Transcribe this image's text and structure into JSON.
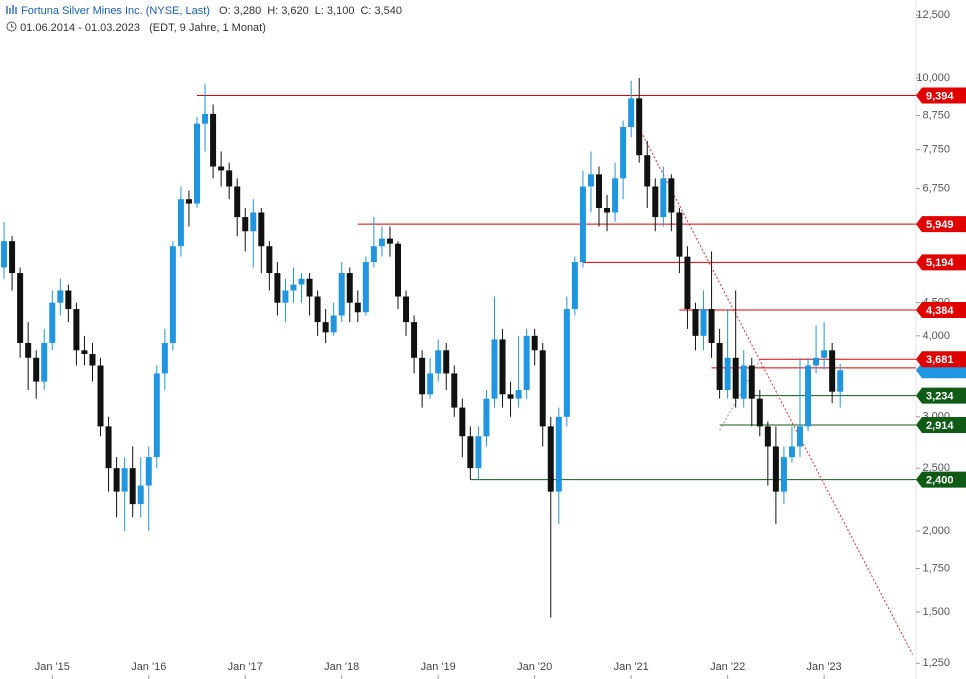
{
  "header": {
    "title": "Fortuna Silver Mines Inc. (NYSE, Last)",
    "ohlc": [
      {
        "name": "O:",
        "text": "3,280"
      },
      {
        "name": "H:",
        "text": "3,620"
      },
      {
        "name": "L:",
        "text": "3,100"
      },
      {
        "name": "C:",
        "text": "3,540"
      }
    ],
    "range": "01.06.2014 - 01.03.2023",
    "info": "(EDT, 9 Jahre, 1 Monat)"
  },
  "chart_data": {
    "type": "candlestick",
    "log_scale": true,
    "up_color": "#2196e0",
    "down_color": "#111111",
    "ylim": [
      1182,
      13190
    ],
    "yticks": [
      {
        "value": 12500,
        "label": "12,500"
      },
      {
        "value": 10000,
        "label": "10,000"
      },
      {
        "value": 8750,
        "label": "8,750"
      },
      {
        "value": 7750,
        "label": "7,750"
      },
      {
        "value": 6750,
        "label": "6,750"
      },
      {
        "value": 4500,
        "label": "4,500"
      },
      {
        "value": 4000,
        "label": "4,000"
      },
      {
        "value": 3000,
        "label": "3,000"
      },
      {
        "value": 2500,
        "label": "2,500"
      },
      {
        "value": 2000,
        "label": "2,000"
      },
      {
        "value": 1750,
        "label": "1,750"
      },
      {
        "value": 1500,
        "label": "1,500"
      },
      {
        "value": 1250,
        "label": "1,250"
      }
    ],
    "categories": [
      null,
      null,
      null,
      null,
      null,
      null,
      null,
      "Jan '15",
      null,
      null,
      null,
      null,
      null,
      null,
      null,
      null,
      null,
      null,
      null,
      "Jan '16",
      null,
      null,
      null,
      null,
      null,
      null,
      null,
      null,
      null,
      null,
      null,
      "Jan '17",
      null,
      null,
      null,
      null,
      null,
      null,
      null,
      null,
      null,
      null,
      null,
      "Jan '18",
      null,
      null,
      null,
      null,
      null,
      null,
      null,
      null,
      null,
      null,
      null,
      "Jan '19",
      null,
      null,
      null,
      null,
      null,
      null,
      null,
      null,
      null,
      null,
      null,
      "Jan '20",
      null,
      null,
      null,
      null,
      null,
      null,
      null,
      null,
      null,
      null,
      null,
      "Jan '21",
      null,
      null,
      null,
      null,
      null,
      null,
      null,
      null,
      null,
      null,
      null,
      "Jan '22",
      null,
      null,
      null,
      null,
      null,
      null,
      null,
      null,
      null,
      null,
      null,
      "Jan '23",
      null,
      null
    ],
    "open": [
      3700,
      5100,
      5600,
      5000,
      3900,
      3700,
      3400,
      3900,
      4500,
      4700,
      4400,
      3800,
      3750,
      3600,
      2900,
      2500,
      2300,
      2500,
      2200,
      2350,
      2600,
      3500,
      3900,
      5500,
      6500,
      6400,
      8500,
      8800,
      7300,
      7200,
      6800,
      6100,
      5800,
      6200,
      5500,
      5000,
      4500,
      4700,
      4800,
      4900,
      4600,
      4200,
      4050,
      4300,
      5000,
      4500,
      4350,
      5200,
      5500,
      5650,
      5550,
      4600,
      4200,
      3700,
      3250,
      3500,
      3800,
      3500,
      3100,
      2800,
      2500,
      2800,
      3200,
      3950,
      3250,
      3200,
      3300,
      4000,
      3800,
      2900,
      2300,
      3000,
      4400,
      5200,
      6800,
      7100,
      6300,
      6200,
      7000,
      8400,
      9300,
      7600,
      6800,
      6100,
      7000,
      6200,
      5300,
      4400,
      4000,
      4400,
      3900,
      3300,
      3700,
      3200,
      3600,
      3200,
      2900,
      2700,
      2300,
      2600,
      2700,
      2900,
      3600,
      3700,
      3800,
      3280
    ],
    "high": [
      5300,
      6000,
      5700,
      5100,
      4200,
      3800,
      4100,
      4700,
      4900,
      4800,
      4500,
      4000,
      3900,
      3700,
      3000,
      2600,
      2600,
      2700,
      2600,
      2700,
      3600,
      4100,
      5600,
      6800,
      6700,
      8700,
      9800,
      9100,
      7700,
      7400,
      7000,
      6300,
      6500,
      6300,
      5600,
      5200,
      4900,
      5100,
      5000,
      5000,
      4700,
      4400,
      4500,
      5200,
      5100,
      4700,
      5300,
      6100,
      5900,
      5900,
      5600,
      4700,
      4300,
      3800,
      3700,
      3950,
      3900,
      3600,
      3200,
      2900,
      2900,
      3300,
      4600,
      4100,
      3400,
      4000,
      4100,
      4100,
      3900,
      3000,
      3100,
      4600,
      5300,
      7200,
      7700,
      7300,
      6600,
      7400,
      8600,
      9900,
      10000,
      8000,
      7000,
      7300,
      7100,
      6300,
      5500,
      4500,
      4700,
      5400,
      4100,
      4400,
      4700,
      3800,
      3700,
      3300,
      2950,
      2900,
      2700,
      2900,
      3700,
      3700,
      4150,
      4200,
      3900,
      3620
    ],
    "low": [
      3600,
      4900,
      4700,
      3700,
      3300,
      3200,
      3300,
      3800,
      4300,
      4200,
      3600,
      3600,
      3400,
      2800,
      2300,
      2100,
      2000,
      2100,
      2100,
      2000,
      2500,
      3300,
      3800,
      5300,
      5900,
      6300,
      7700,
      7000,
      6800,
      6500,
      5700,
      5400,
      5100,
      5000,
      4700,
      4300,
      4200,
      4500,
      4500,
      4300,
      4000,
      3900,
      4000,
      4200,
      4200,
      4200,
      4300,
      5100,
      5300,
      5300,
      4400,
      4000,
      3500,
      3100,
      3200,
      3400,
      3300,
      3000,
      2600,
      2400,
      2400,
      2700,
      3100,
      3100,
      3000,
      3100,
      3200,
      3600,
      2700,
      1470,
      2050,
      2900,
      4300,
      5100,
      6200,
      5900,
      5800,
      6000,
      6500,
      8100,
      7400,
      6300,
      5800,
      5900,
      5800,
      5000,
      4100,
      3800,
      3800,
      3700,
      3200,
      3200,
      3100,
      3100,
      2900,
      2800,
      2350,
      2050,
      2200,
      2550,
      2600,
      2850,
      3500,
      3550,
      3150,
      3100
    ],
    "close": [
      5100,
      5600,
      5000,
      3900,
      3700,
      3400,
      3900,
      4500,
      4700,
      4400,
      3800,
      3750,
      3600,
      2900,
      2500,
      2300,
      2500,
      2200,
      2350,
      2600,
      3500,
      3900,
      5500,
      6500,
      6400,
      8500,
      8800,
      7300,
      7200,
      6800,
      6100,
      5800,
      6200,
      5500,
      5000,
      4500,
      4700,
      4800,
      4900,
      4600,
      4200,
      4050,
      4300,
      5000,
      4500,
      4350,
      5200,
      5500,
      5650,
      5550,
      4600,
      4200,
      3700,
      3250,
      3500,
      3800,
      3500,
      3100,
      2800,
      2500,
      2800,
      3200,
      3950,
      3250,
      3200,
      3300,
      4000,
      3800,
      2900,
      2300,
      3000,
      4400,
      5200,
      6800,
      7100,
      6300,
      6200,
      7000,
      8400,
      9300,
      7600,
      6800,
      6100,
      7000,
      6200,
      5300,
      4400,
      4000,
      4400,
      3900,
      3300,
      3700,
      3200,
      3600,
      3200,
      2900,
      2700,
      2300,
      2600,
      2700,
      2900,
      3600,
      3700,
      3800,
      3280,
      3540
    ],
    "levels": [
      {
        "value": 9394,
        "label": "9,394",
        "color": "#e00000",
        "start": 25
      },
      {
        "value": 5949,
        "label": "5,949",
        "color": "#e00000",
        "start": 45
      },
      {
        "value": 5194,
        "label": "5,194",
        "color": "#e00000",
        "start": 73
      },
      {
        "value": 4384,
        "label": "4,384",
        "color": "#e00000",
        "start": 85
      },
      {
        "value": 3681,
        "label": "3,681",
        "color": "#e00000",
        "start": 95
      },
      {
        "value": 3570,
        "color": "#e00000",
        "start": 89
      },
      {
        "value": 3234,
        "label": "3,234",
        "color": "#0f5a14",
        "start": 94
      },
      {
        "value": 2914,
        "label": "2,914",
        "color": "#0f5a14",
        "start": 90
      },
      {
        "value": 2400,
        "label": "2,400",
        "color": "#0f5a14",
        "start": 59
      }
    ],
    "trendlines": [
      {
        "color": "#e03030",
        "start": [
          80,
          8370
        ],
        "end": [
          114,
          1290
        ]
      },
      {
        "color": "#999999",
        "start": [
          90,
          2860
        ],
        "end": [
          95,
          3670
        ]
      }
    ],
    "last_price_color": "#2196e0"
  }
}
